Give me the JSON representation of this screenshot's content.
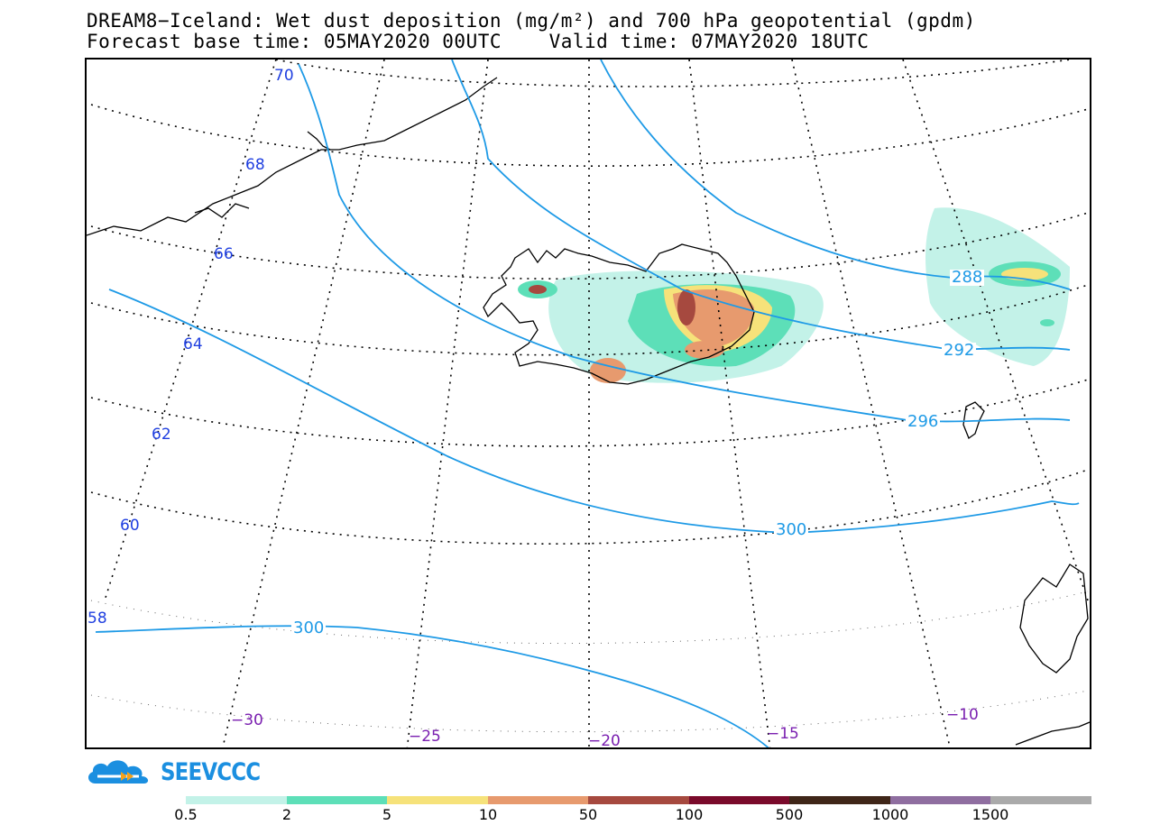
{
  "header": {
    "title_line1": "DREAM8−Iceland: Wet dust deposition (mg/m²) and 700 hPa geopotential (gpdm)",
    "title_line2": "Forecast base time: 05MAY2020 00UTC    Valid time: 07MAY2020 18UTC"
  },
  "map": {
    "latitude_labels": [
      "70",
      "68",
      "66",
      "64",
      "62",
      "60",
      "58"
    ],
    "longitude_labels": [
      "−30",
      "−25",
      "−20",
      "−15",
      "−10"
    ],
    "contour_labels": [
      "288",
      "292",
      "296",
      "300",
      "300"
    ],
    "colors": {
      "geopotential_contour": "#1e9ae6",
      "graticule": "#000000",
      "coastline": "#000000",
      "latitude_label": "#1f3fe0",
      "longitude_label": "#7a1fb0"
    }
  },
  "logo": {
    "text": "SEEVCCC",
    "icon": "cloud-logo-icon",
    "color": "#1b8fe0"
  },
  "colorbar": {
    "labels": [
      "0.5",
      "2",
      "5",
      "10",
      "50",
      "100",
      "500",
      "1000",
      "1500"
    ],
    "colors": [
      "#c3f2e8",
      "#5ddfb8",
      "#f6e27a",
      "#e79a6e",
      "#a6493f",
      "#7a0a2b",
      "#3f2618",
      "#8f6ea0",
      "#aaaaaa"
    ]
  }
}
